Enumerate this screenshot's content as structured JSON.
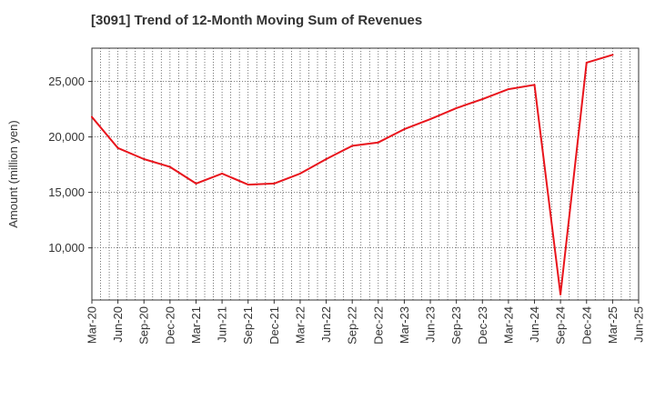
{
  "chart_data": {
    "type": "line",
    "title": "[3091]  Trend of 12-Month Moving Sum of Revenues",
    "xlabel": "",
    "ylabel": "Amount (million yen)",
    "x_tick_labels": [
      "Mar-20",
      "Jun-20",
      "Sep-20",
      "Dec-20",
      "Mar-21",
      "Jun-21",
      "Sep-21",
      "Dec-21",
      "Mar-22",
      "Jun-22",
      "Sep-22",
      "Dec-22",
      "Mar-23",
      "Jun-23",
      "Sep-23",
      "Dec-23",
      "Mar-24",
      "Jun-24",
      "Sep-24",
      "Dec-24",
      "Mar-25",
      "Jun-25"
    ],
    "y_ticks": [
      10000,
      15000,
      20000,
      25000
    ],
    "y_tick_labels": [
      "10,000",
      "15,000",
      "20,000",
      "25,000"
    ],
    "ylim": [
      5300,
      28000
    ],
    "grid": true,
    "series": [
      {
        "color": "#e8141c",
        "x": [
          "Mar-20",
          "Jun-20",
          "Sep-20",
          "Dec-20",
          "Mar-21",
          "Jun-21",
          "Sep-21",
          "Dec-21",
          "Mar-22",
          "Jun-22",
          "Sep-22",
          "Dec-22",
          "Mar-23",
          "Jun-23",
          "Sep-23",
          "Dec-23",
          "Mar-24",
          "Jun-24",
          "Sep-24",
          "Dec-24",
          "Mar-25"
        ],
        "values": [
          21800,
          19000,
          18000,
          17300,
          15800,
          16700,
          15700,
          15800,
          16700,
          18000,
          19200,
          19500,
          20700,
          21600,
          22600,
          23400,
          24300,
          24700,
          5800,
          26700,
          27400
        ]
      }
    ]
  }
}
